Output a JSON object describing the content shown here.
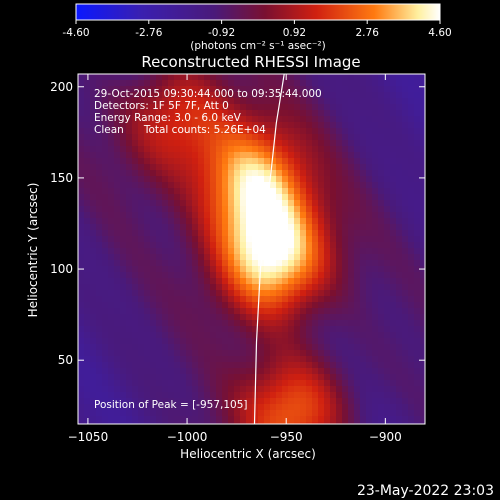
{
  "colorbar": {
    "tick_labels": [
      "-4.60",
      "-2.76",
      "-0.92",
      "0.92",
      "2.76",
      "4.60"
    ],
    "range": [
      -4.6,
      4.6
    ],
    "unit_label": "(photons cm⁻² s⁻¹ asec⁻²)",
    "colors": [
      "#0a18ff",
      "#3a1fb0",
      "#4a1a7a",
      "#7a1030",
      "#d02010",
      "#ff7a10",
      "#fff0a0",
      "#ffffff"
    ]
  },
  "chart_data": {
    "type": "heatmap",
    "title": "Reconstructed RHESSI Image",
    "xlabel": "Heliocentric X (arcsec)",
    "ylabel": "Heliocentric Y (arcsec)",
    "xlim": [
      -1055,
      -880
    ],
    "ylim": [
      15,
      207
    ],
    "x_ticks": [
      -1050,
      -1000,
      -950,
      -900
    ],
    "y_ticks": [
      50,
      100,
      150,
      200
    ],
    "x_tick_labels": [
      "−1050",
      "−1000",
      "−950",
      "−900"
    ],
    "y_tick_labels": [
      "50",
      "100",
      "150",
      "200"
    ],
    "peak": [
      -957,
      105
    ],
    "sources": [
      {
        "x": -957,
        "y": 105,
        "intensity": 4.6
      },
      {
        "x": -968,
        "y": 147,
        "intensity": 3.6
      },
      {
        "x": -1005,
        "y": 183,
        "intensity": 2.0
      },
      {
        "x": -945,
        "y": 22,
        "intensity": 2.6
      }
    ],
    "background_level": -1.4,
    "limb_curve": [
      [
        -951,
        207
      ],
      [
        -955,
        180
      ],
      [
        -959,
        140
      ],
      [
        -963,
        100
      ],
      [
        -965,
        60
      ],
      [
        -966,
        15
      ]
    ],
    "info_lines": [
      "29-Oct-2015 09:30:44.000 to 09:35:44.000",
      "Detectors: 1F 5F 7F, Att 0",
      "Energy Range: 3.0 - 6.0 keV",
      "Clean      Total counts: 5.26E+04"
    ],
    "peak_text": "Position of Peak = [-957,105]"
  },
  "footer": {
    "timestamp": "23-May-2022 23:03"
  }
}
